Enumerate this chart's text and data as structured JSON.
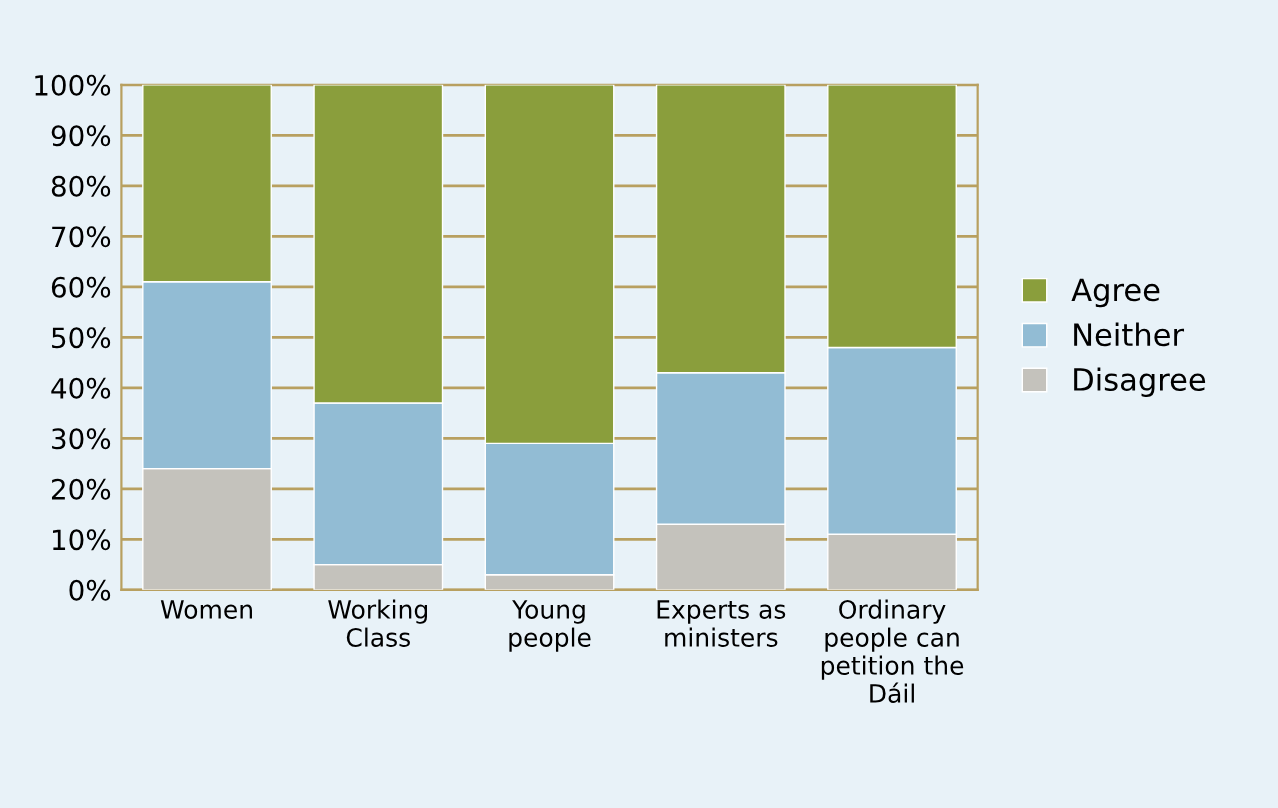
{
  "chart_data": {
    "type": "bar",
    "stacked": true,
    "categories": [
      "Women",
      "Working\nClass",
      "Young\npeople",
      "Experts as\nministers",
      "Ordinary\npeople can\npetition the\nDáil"
    ],
    "series": [
      {
        "name": "Disagree",
        "color": "#c4c2bc",
        "values": [
          24,
          5,
          3,
          13,
          11
        ]
      },
      {
        "name": "Neither",
        "color": "#92bcd4",
        "values": [
          37,
          32,
          26,
          30,
          37
        ]
      },
      {
        "name": "Agree",
        "color": "#8a9e3c",
        "values": [
          39,
          63,
          71,
          57,
          52
        ]
      }
    ],
    "ylim": [
      0,
      100
    ],
    "yticks": [
      {
        "value": 0,
        "label": "0%"
      },
      {
        "value": 10,
        "label": "10%"
      },
      {
        "value": 20,
        "label": "20%"
      },
      {
        "value": 30,
        "label": "30%"
      },
      {
        "value": 40,
        "label": "40%"
      },
      {
        "value": 50,
        "label": "50%"
      },
      {
        "value": 60,
        "label": "60%"
      },
      {
        "value": 70,
        "label": "70%"
      },
      {
        "value": 80,
        "label": "80%"
      },
      {
        "value": 90,
        "label": "90%"
      },
      {
        "value": 100,
        "label": "100%"
      }
    ],
    "grid": "y",
    "legend": "right"
  }
}
